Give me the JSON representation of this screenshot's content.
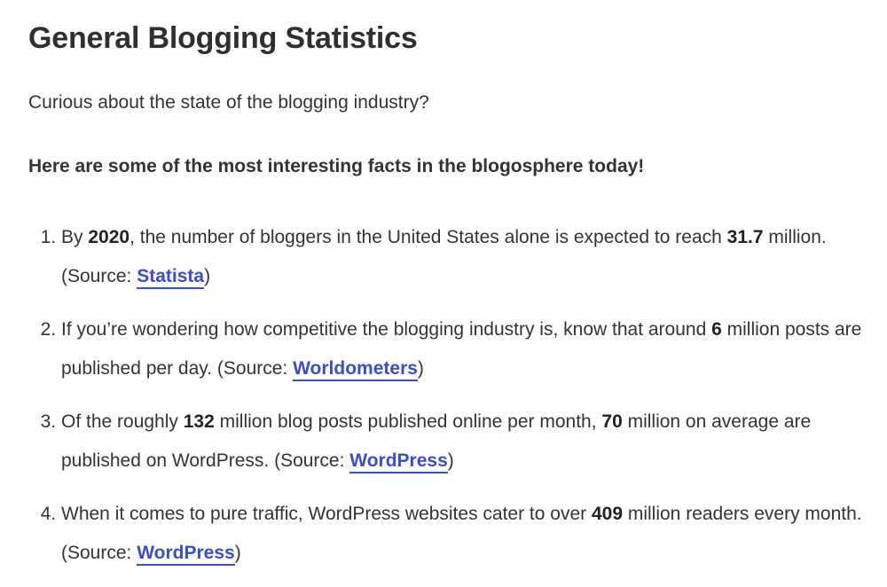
{
  "heading": "General Blogging Statistics",
  "intro": "Curious about the state of the blogging industry?",
  "lead": "Here are some of the most interesting facts in the blogosphere today!",
  "link_color": "#3a4ec8",
  "items": [
    {
      "t1": "By ",
      "b1": "2020",
      "t2": ", the number of bloggers in the United States alone is expected to reach ",
      "b2": "31.7",
      "t3": " million. (Source: ",
      "link": "Statista",
      "t4": ")"
    },
    {
      "t1": "If you’re wondering how competitive the blogging industry is, know that around ",
      "b1": "6",
      "t2": " million posts are published per day. (Source: ",
      "link": "Worldometers",
      "t3": ")"
    },
    {
      "t1": "Of the roughly ",
      "b1": "132",
      "t2": " million blog posts published online per month, ",
      "b2": "70",
      "t3": " million on average are published on WordPress. (Source: ",
      "link": "WordPress",
      "t4": ")"
    },
    {
      "t1": "When it comes to pure traffic, WordPress websites cater to over ",
      "b1": "409",
      "t2": " million readers every month. (Source: ",
      "link": "WordPress",
      "t3": ")"
    }
  ]
}
